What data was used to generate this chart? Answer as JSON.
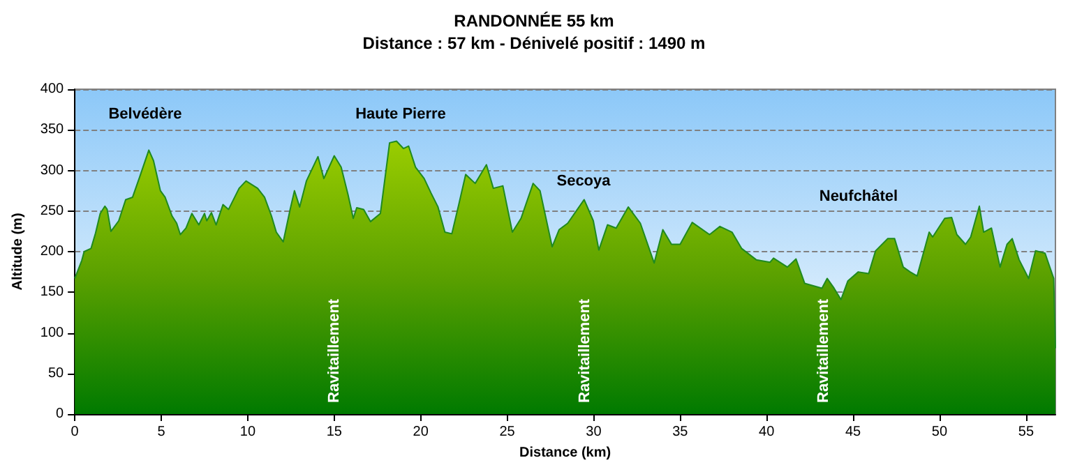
{
  "chart_data": {
    "type": "area",
    "title": "RANDONNÉE 55 km",
    "subtitle": "Distance : 57 km - Dénivelé positif : 1490 m",
    "xlabel": "Distance (km)",
    "ylabel": "Altitude (m)",
    "series": [
      {
        "color": "#1f8a1f",
        "x": [
          0,
          0.4,
          0.54,
          0.94,
          1.2,
          1.47,
          1.74,
          1.87,
          2.09,
          2.54,
          2.94,
          3.34,
          3.75,
          4.28,
          4.55,
          4.95,
          5.22,
          5.62,
          5.89,
          6.1,
          6.43,
          6.77,
          7.17,
          7.5,
          7.63,
          7.9,
          8.17,
          8.57,
          8.89,
          9.5,
          9.9,
          10.57,
          10.97,
          11.37,
          11.65,
          12.05,
          12.45,
          12.7,
          13,
          13.39,
          14.06,
          14.4,
          15,
          15.4,
          15.8,
          16.1,
          16.3,
          16.7,
          17.1,
          17.67,
          18.2,
          18.6,
          19,
          19.3,
          19.7,
          20.2,
          20.6,
          21,
          21.4,
          21.8,
          22.2,
          22.6,
          23.15,
          23.8,
          24.2,
          24.75,
          25.3,
          25.8,
          26.5,
          26.9,
          27.6,
          28,
          28.5,
          29.45,
          29.98,
          30.3,
          30.8,
          31.3,
          32,
          32.7,
          33.5,
          34,
          34.5,
          35,
          35.7,
          36.7,
          37.3,
          38,
          38.55,
          39.4,
          40.2,
          40.4,
          41.2,
          41.7,
          42.2,
          42.7,
          43.2,
          43.5,
          43.9,
          44.3,
          44.7,
          45.3,
          45.9,
          46.3,
          47,
          47.4,
          47.9,
          48.3,
          48.7,
          49.4,
          49.6,
          50.3,
          50.7,
          51,
          51.5,
          51.8,
          52.3,
          52.55,
          53,
          53.5,
          53.9,
          54.2,
          54.6,
          55.15,
          55.55,
          56.1,
          56.6,
          56.7
        ],
        "values": [
          167,
          189,
          200,
          204,
          223,
          247,
          256,
          252,
          225,
          238,
          264,
          267,
          292,
          325,
          312,
          275,
          267,
          244,
          235,
          221,
          229,
          247,
          233,
          247,
          238,
          248,
          233,
          258,
          252,
          278,
          287,
          278,
          267,
          244,
          224,
          212,
          252,
          275,
          255,
          287,
          317,
          290,
          318,
          304,
          270,
          241,
          254,
          252,
          237,
          247,
          334,
          336,
          327,
          330,
          304,
          290,
          272,
          255,
          224,
          222,
          258,
          295,
          284,
          307,
          278,
          281,
          224,
          241,
          284,
          275,
          206,
          227,
          235,
          264,
          238,
          202,
          233,
          229,
          255,
          235,
          186,
          227,
          209,
          209,
          236,
          221,
          231,
          224,
          204,
          190,
          187,
          192,
          181,
          191,
          161,
          158,
          155,
          167,
          155,
          141,
          164,
          175,
          173,
          201,
          216,
          216,
          181,
          175,
          170,
          224,
          218,
          241,
          242,
          221,
          209,
          218,
          256,
          224,
          229,
          181,
          209,
          216,
          190,
          167,
          201,
          198,
          167,
          81
        ]
      }
    ],
    "xlim": [
      0,
      56.7
    ],
    "xticks": [
      0,
      5,
      10,
      15,
      20,
      25,
      30,
      35,
      40,
      45,
      50,
      55
    ],
    "ylim": [
      0,
      400
    ],
    "yticks": [
      0,
      50,
      100,
      150,
      200,
      250,
      300,
      350,
      400
    ],
    "grid": "y",
    "annotations": [
      "Belvédère",
      "Haute Pierre",
      "Secoya",
      "Neufchâtel",
      {
        "text": "Ravitaillement",
        "x": 15,
        "y": 0
      },
      {
        "text": "Ravitaillement",
        "x": 29.5,
        "y": 0
      },
      {
        "text": "Ravitaillement",
        "x": 43.3,
        "y": 0
      }
    ]
  }
}
